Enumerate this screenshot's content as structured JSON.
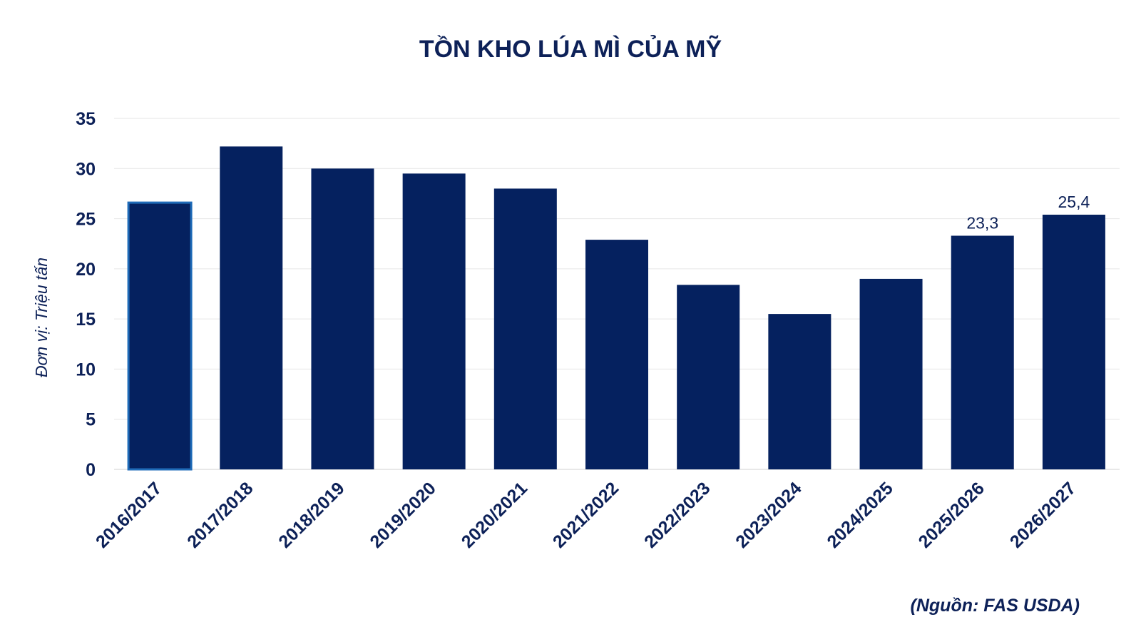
{
  "chart_data": {
    "type": "bar",
    "title": "TỒN KHO LÚA MÌ CỦA MỸ",
    "ylabel": "Đơn vị: Triệu tấn",
    "xlabel": "",
    "ylim": [
      0,
      35
    ],
    "yticks": [
      0,
      5,
      10,
      15,
      20,
      25,
      30,
      35
    ],
    "grid": true,
    "categories": [
      "2016/2017",
      "2017/2018",
      "2018/2019",
      "2019/2020",
      "2020/2021",
      "2021/2022",
      "2022/2023",
      "2023/2024",
      "2024/2025",
      "2025/2026",
      "2026/2027"
    ],
    "values": [
      26.6,
      32.2,
      30.0,
      29.5,
      28.0,
      22.9,
      18.4,
      15.5,
      19.0,
      23.3,
      25.4
    ],
    "data_labels": [
      "",
      "",
      "",
      "",
      "",
      "",
      "",
      "",
      "",
      "23,3",
      "25,4"
    ],
    "highlighted_index": 0,
    "bar_color": "#05215f",
    "highlight_border_color": "#1f6bb8",
    "text_color": "#0d2158",
    "source": "(Nguồn: FAS USDA)"
  }
}
